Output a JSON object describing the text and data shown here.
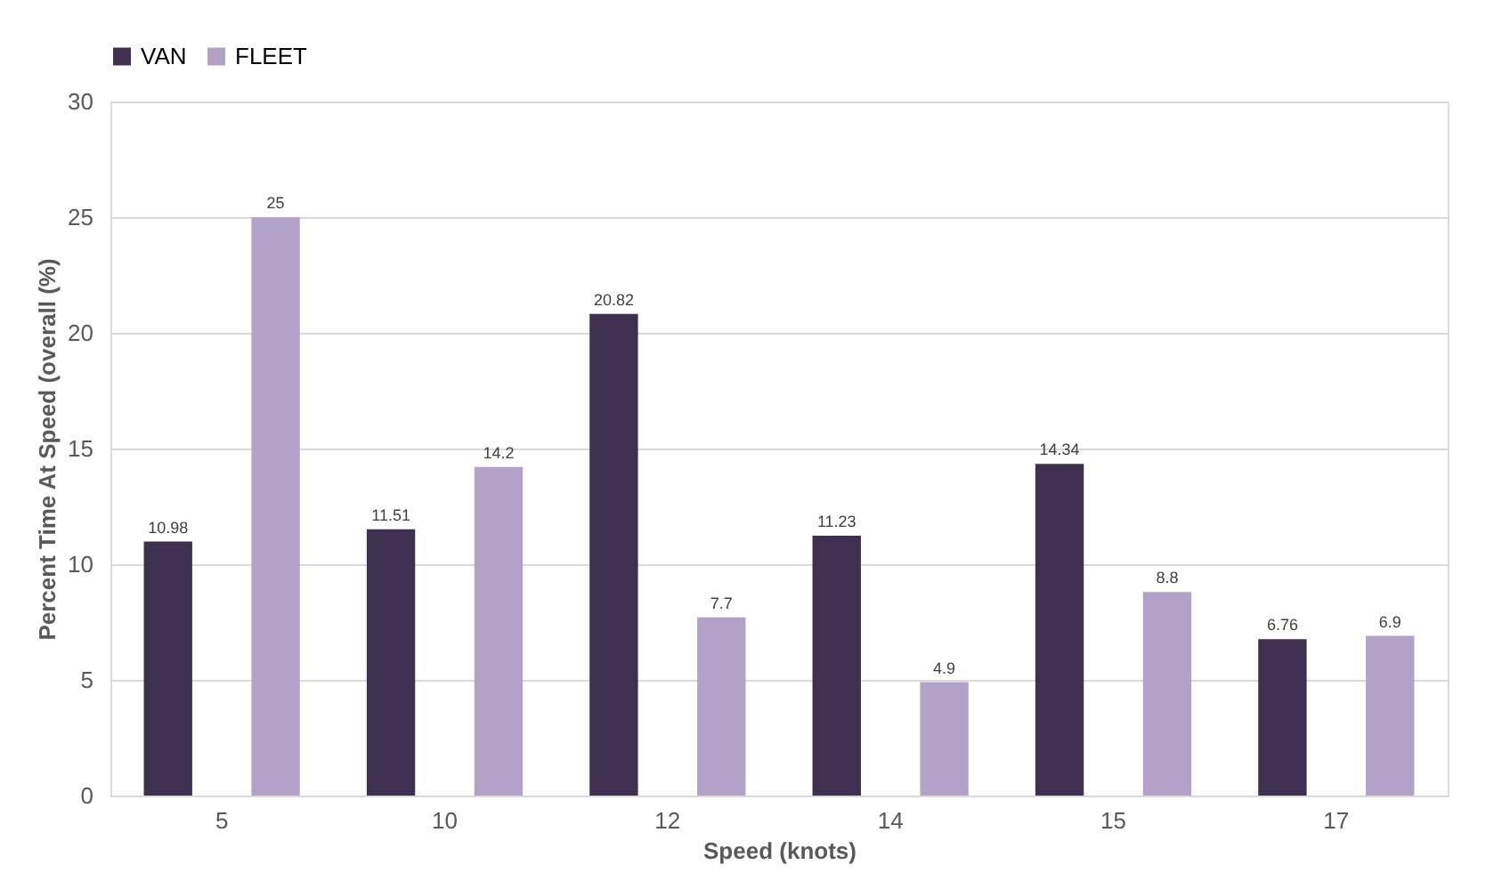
{
  "chart_data": {
    "type": "bar",
    "xlabel": "Speed (knots)",
    "ylabel": "Percent Time At Speed (overall (%)",
    "categories": [
      "5",
      "10",
      "12",
      "14",
      "15",
      "17"
    ],
    "series": [
      {
        "name": "VAN",
        "color": "#3e3150",
        "values": [
          10.98,
          11.51,
          20.82,
          11.23,
          14.34,
          6.76
        ]
      },
      {
        "name": "FLEET",
        "color": "#b3a2c8",
        "values": [
          25,
          14.2,
          7.7,
          4.9,
          8.8,
          6.9
        ]
      }
    ],
    "ylim": [
      0,
      30
    ],
    "yticks": [
      0,
      5,
      10,
      15,
      20,
      25,
      30
    ],
    "grid": "y",
    "legend": "top",
    "data_labels": true
  }
}
